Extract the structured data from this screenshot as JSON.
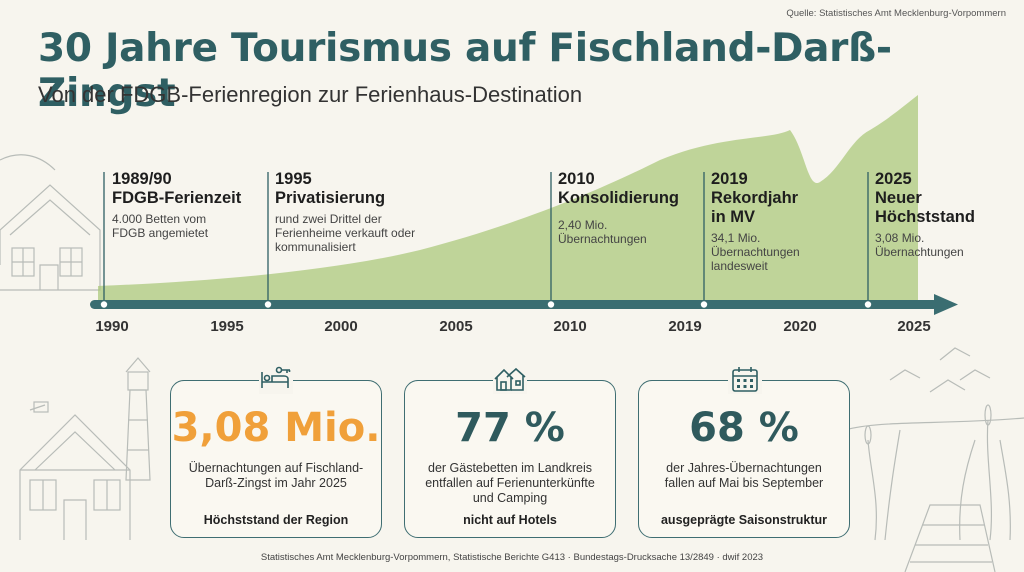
{
  "source_top": "Quelle: Statistisches Amt Mecklenburg-Vorpommern",
  "title": "30 Jahre Tourismus auf Fischland-Darß-Zingst",
  "subtitle": "Von der FDGB-Ferienregion zur Ferienhaus-Destination",
  "colors": {
    "accent": "#2f5f63",
    "highlight": "#f0a03a",
    "area": "#a9c878"
  },
  "timeline": {
    "years": [
      "1990",
      "1995",
      "2000",
      "2005",
      "2010",
      "2019",
      "2020",
      "2025"
    ],
    "milestones": [
      {
        "title": "1989/90\nFDGB-Ferienzeit",
        "desc": "4.000 Betten vom\nFDGB angemietet"
      },
      {
        "title": "1995\nPrivatisierung",
        "desc": "rund zwei Drittel der\nFerienheime verkauft oder\nkommunalisiert"
      },
      {
        "title": "2010\nKonsolidierung",
        "desc": "2,40 Mio.\nÜbernachtungen"
      },
      {
        "title": "2019\nRekordjahr\nin MV",
        "desc": "34,1 Mio.\nÜbernachtungen\nlandesweit"
      },
      {
        "title": "2025\nNeuer\nHöchststand",
        "desc": "3,08 Mio.\nÜbernachtungen"
      }
    ]
  },
  "cards": [
    {
      "icon": "bed-key-icon",
      "value": "3,08 Mio.",
      "desc": "Übernachtungen auf Fischland-\nDarß-Zingst im Jahr 2025",
      "note": "Höchststand der Region"
    },
    {
      "icon": "houses-icon",
      "value": "77 %",
      "desc": "der Gästebetten im Landkreis\nentfallen auf Ferienunterkünfte\nund Camping",
      "note": "nicht auf Hotels"
    },
    {
      "icon": "calendar-icon",
      "value": "68 %",
      "desc": "der Jahres-Übernachtungen\nfallen auf Mai bis September",
      "note": "ausgeprägte Saisonstruktur"
    }
  ],
  "footer": "Statistisches Amt Mecklenburg-Vorpommern, Statistische Berichte G413 · Bundestags-Drucksache 13/2849 · dwif 2023"
}
